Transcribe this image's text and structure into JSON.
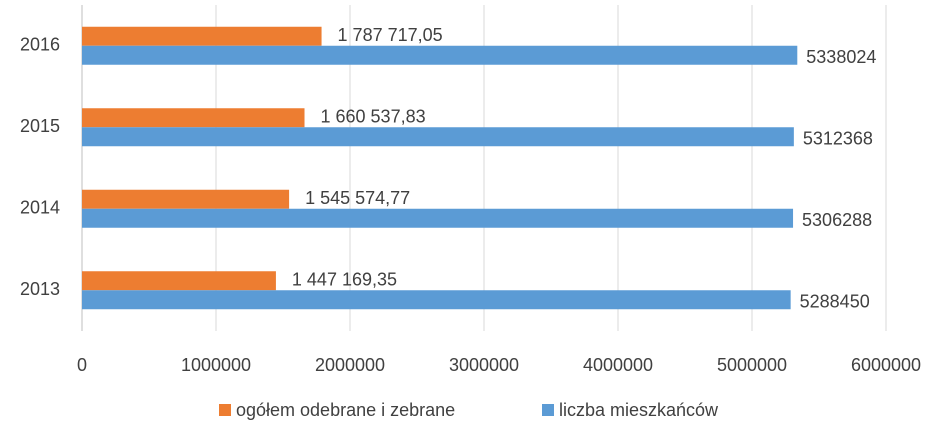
{
  "chart_data": {
    "type": "bar",
    "orientation": "horizontal",
    "categories": [
      "2013",
      "2014",
      "2015",
      "2016"
    ],
    "series": [
      {
        "name": "ogółem odebrane i zebrane",
        "color": "#ed7d31",
        "values": [
          1447169.35,
          1545574.77,
          1660537.83,
          1787717.05
        ],
        "value_labels": [
          "1 447 169,35",
          "1 545 574,77",
          "1 660 537,83",
          "1 787 717,05"
        ]
      },
      {
        "name": "liczba mieszkańców",
        "color": "#5b9bd5",
        "values": [
          5288450,
          5306288,
          5312368,
          5338024
        ]
      }
    ],
    "xlim": [
      0,
      6000000
    ],
    "xticks": [
      0,
      1000000,
      2000000,
      3000000,
      4000000,
      5000000,
      6000000
    ],
    "grid": true,
    "legend": "bottom"
  }
}
